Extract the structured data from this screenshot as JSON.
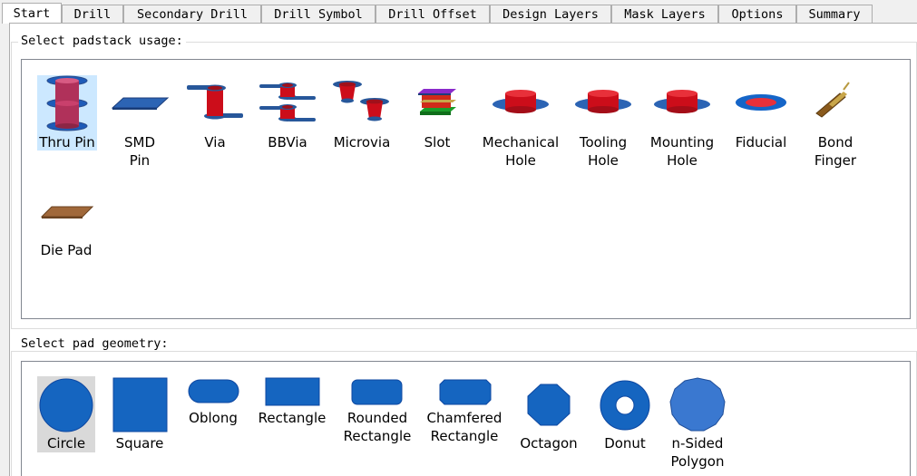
{
  "tabs": [
    "Start",
    "Drill",
    "Secondary Drill",
    "Drill Symbol",
    "Drill Offset",
    "Design Layers",
    "Mask Layers",
    "Options",
    "Summary"
  ],
  "usage": {
    "title": "Select padstack usage:",
    "items": [
      {
        "label": "Thru Pin",
        "icon": "thru-pin-icon"
      },
      {
        "label": "SMD\nPin",
        "icon": "smd-pin-icon"
      },
      {
        "label": "Via",
        "icon": "via-icon"
      },
      {
        "label": "BBVia",
        "icon": "bbvia-icon"
      },
      {
        "label": "Microvia",
        "icon": "microvia-icon"
      },
      {
        "label": "Slot",
        "icon": "slot-icon"
      },
      {
        "label": "Mechanical\nHole",
        "icon": "mechanical-hole-icon"
      },
      {
        "label": "Tooling\nHole",
        "icon": "tooling-hole-icon"
      },
      {
        "label": "Mounting\nHole",
        "icon": "mounting-hole-icon"
      },
      {
        "label": "Fiducial",
        "icon": "fiducial-icon"
      },
      {
        "label": "Bond\nFinger",
        "icon": "bond-finger-icon"
      },
      {
        "label": "Die Pad",
        "icon": "die-pad-icon"
      }
    ]
  },
  "geometry": {
    "title": "Select pad geometry:",
    "items": [
      {
        "label": "Circle",
        "icon": "circle-icon"
      },
      {
        "label": "Square",
        "icon": "square-icon"
      },
      {
        "label": "Oblong",
        "icon": "oblong-icon"
      },
      {
        "label": "Rectangle",
        "icon": "rectangle-icon"
      },
      {
        "label": "Rounded\nRectangle",
        "icon": "rounded-rectangle-icon"
      },
      {
        "label": "Chamfered\nRectangle",
        "icon": "chamfered-rectangle-icon"
      },
      {
        "label": "Octagon",
        "icon": "octagon-icon"
      },
      {
        "label": "Donut",
        "icon": "donut-icon"
      },
      {
        "label": "n-Sided\nPolygon",
        "icon": "n-sided-polygon-icon"
      }
    ]
  },
  "colors": {
    "pad_blue": "#1565c0",
    "hole_red": "#d0101e",
    "selection": "#cce8ff"
  }
}
